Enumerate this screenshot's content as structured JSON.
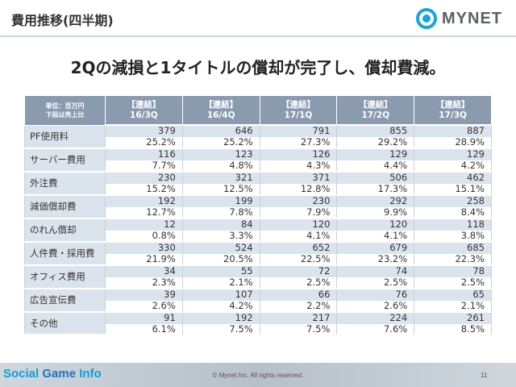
{
  "header": {
    "title": "費用推移(四半期)"
  },
  "logo": {
    "text": "MYNET"
  },
  "headline": "2Qの減損と1タイトルの償却が完了し、償却費減。",
  "table": {
    "unit_line1": "単位：百万円",
    "unit_line2": "下段は売上比",
    "columns": [
      {
        "tag": "【連結】",
        "period": "16/3Q"
      },
      {
        "tag": "【連結】",
        "period": "16/4Q"
      },
      {
        "tag": "【連結】",
        "period": "17/1Q"
      },
      {
        "tag": "【連結】",
        "period": "17/2Q"
      },
      {
        "tag": "【連結】",
        "period": "17/3Q"
      }
    ],
    "rows": [
      {
        "label": "PF使用料",
        "values": [
          "379",
          "646",
          "791",
          "855",
          "887"
        ],
        "ratios": [
          "25.2%",
          "25.2%",
          "27.3%",
          "29.2%",
          "28.9%"
        ]
      },
      {
        "label": "サーバー費用",
        "values": [
          "116",
          "123",
          "126",
          "129",
          "129"
        ],
        "ratios": [
          "7.7%",
          "4.8%",
          "4.3%",
          "4.4%",
          "4.2%"
        ]
      },
      {
        "label": "外注費",
        "values": [
          "230",
          "321",
          "371",
          "506",
          "462"
        ],
        "ratios": [
          "15.2%",
          "12.5%",
          "12.8%",
          "17.3%",
          "15.1%"
        ]
      },
      {
        "label": "減価償却費",
        "values": [
          "192",
          "199",
          "230",
          "292",
          "258"
        ],
        "ratios": [
          "12.7%",
          "7.8%",
          "7.9%",
          "9.9%",
          "8.4%"
        ]
      },
      {
        "label": "のれん償却",
        "values": [
          "12",
          "84",
          "120",
          "120",
          "118"
        ],
        "ratios": [
          "0.8%",
          "3.3%",
          "4.1%",
          "4.1%",
          "3.8%"
        ]
      },
      {
        "label": "人件費・採用費",
        "values": [
          "330",
          "524",
          "652",
          "679",
          "685"
        ],
        "ratios": [
          "21.9%",
          "20.5%",
          "22.5%",
          "23.2%",
          "22.3%"
        ]
      },
      {
        "label": "オフィス費用",
        "values": [
          "34",
          "55",
          "72",
          "74",
          "78"
        ],
        "ratios": [
          "2.3%",
          "2.1%",
          "2.5%",
          "2.5%",
          "2.5%"
        ]
      },
      {
        "label": "広告宣伝費",
        "values": [
          "39",
          "107",
          "66",
          "76",
          "65"
        ],
        "ratios": [
          "2.6%",
          "4.2%",
          "2.2%",
          "2.6%",
          "2.1%"
        ]
      },
      {
        "label": "その他",
        "values": [
          "91",
          "192",
          "217",
          "224",
          "261"
        ],
        "ratios": [
          "6.1%",
          "7.5%",
          "7.5%",
          "7.6%",
          "8.5%"
        ]
      }
    ]
  },
  "footer": {
    "watermark_part1": "Social ",
    "watermark_part2": "Game",
    "watermark_part3": " Info",
    "copyright": "© Mynet Inc. All rights reserved.",
    "page": "11"
  },
  "colors": {
    "header_fill": "#8a9bb0",
    "row_fill": "#dbe4ec",
    "logo_accent": "#1aa3d9"
  }
}
